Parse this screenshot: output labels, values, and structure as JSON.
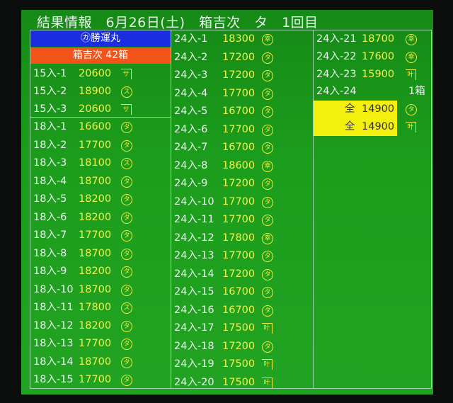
{
  "title": "結果情報　6月26日(土)　箱吉次　タ　1回目",
  "vessel": "㋕勝運丸",
  "summary": "箱吉次 42箱",
  "colors": {
    "board": "#1c9d1c",
    "price": "#f2f24a",
    "vessel_bg": "#1a2ee0",
    "summary_bg": "#f25318",
    "highlight": "#f4f00e"
  },
  "marks": {
    "ta": "タ",
    "su": "ス",
    "sa": "サ",
    "kou": "幸",
    "kanau": "叶"
  },
  "col1_top": [
    {
      "lot": "15入-1",
      "price": "20600",
      "mark": "sa"
    },
    {
      "lot": "15入-2",
      "price": "18900",
      "mark": "su"
    },
    {
      "lot": "15入-3",
      "price": "20600",
      "mark": "sa"
    }
  ],
  "col1": [
    {
      "lot": "18入-1",
      "price": "16600",
      "mark": "ta"
    },
    {
      "lot": "18入-2",
      "price": "17700",
      "mark": "ta"
    },
    {
      "lot": "18入-3",
      "price": "18100",
      "mark": "su"
    },
    {
      "lot": "18入-4",
      "price": "18700",
      "mark": "ta"
    },
    {
      "lot": "18入-5",
      "price": "18200",
      "mark": "ta"
    },
    {
      "lot": "18入-6",
      "price": "18200",
      "mark": "ta"
    },
    {
      "lot": "18入-7",
      "price": "17700",
      "mark": "ta"
    },
    {
      "lot": "18入-8",
      "price": "18700",
      "mark": "ta"
    },
    {
      "lot": "18入-9",
      "price": "18200",
      "mark": "ta"
    },
    {
      "lot": "18入-10",
      "price": "18700",
      "mark": "ta"
    },
    {
      "lot": "18入-11",
      "price": "17800",
      "mark": "su"
    },
    {
      "lot": "18入-12",
      "price": "18200",
      "mark": "ta"
    },
    {
      "lot": "18入-13",
      "price": "17700",
      "mark": "ta"
    },
    {
      "lot": "18入-14",
      "price": "18700",
      "mark": "ta"
    },
    {
      "lot": "18入-15",
      "price": "17700",
      "mark": "ta"
    }
  ],
  "col2": [
    {
      "lot": "24入-1",
      "price": "18300",
      "mark": "kou"
    },
    {
      "lot": "24入-2",
      "price": "17200",
      "mark": "ta"
    },
    {
      "lot": "24入-3",
      "price": "17200",
      "mark": "ta"
    },
    {
      "lot": "24入-4",
      "price": "17700",
      "mark": "ta"
    },
    {
      "lot": "24入-5",
      "price": "16700",
      "mark": "ta"
    },
    {
      "lot": "24入-6",
      "price": "17700",
      "mark": "ta"
    },
    {
      "lot": "24入-7",
      "price": "16700",
      "mark": "ta"
    },
    {
      "lot": "24入-8",
      "price": "18600",
      "mark": "kou"
    },
    {
      "lot": "24入-9",
      "price": "17200",
      "mark": "ta"
    },
    {
      "lot": "24入-10",
      "price": "17700",
      "mark": "ta"
    },
    {
      "lot": "24入-11",
      "price": "17700",
      "mark": "ta"
    },
    {
      "lot": "24入-12",
      "price": "17800",
      "mark": "kou"
    },
    {
      "lot": "24入-13",
      "price": "17700",
      "mark": "ta"
    },
    {
      "lot": "24入-14",
      "price": "17200",
      "mark": "ta"
    },
    {
      "lot": "24入-15",
      "price": "16700",
      "mark": "ta"
    },
    {
      "lot": "24入-16",
      "price": "16700",
      "mark": "ta"
    },
    {
      "lot": "24入-17",
      "price": "17500",
      "mark": "kanau"
    },
    {
      "lot": "24入-18",
      "price": "17200",
      "mark": "ta"
    },
    {
      "lot": "24入-19",
      "price": "17500",
      "mark": "kanau"
    },
    {
      "lot": "24入-20",
      "price": "17500",
      "mark": "kanau"
    }
  ],
  "col3": [
    {
      "lot": "24入-21",
      "price": "18700",
      "mark": "kou"
    },
    {
      "lot": "24入-22",
      "price": "17600",
      "mark": "kou"
    },
    {
      "lot": "24入-23",
      "price": "15900",
      "mark": "kanau"
    },
    {
      "lot": "24入-24",
      "boxes": "1箱"
    },
    {
      "lot": "全",
      "price": "14900",
      "mark": "ta",
      "highlight": true
    },
    {
      "lot": "全",
      "price": "14900",
      "mark": "kanau",
      "highlight": true
    }
  ]
}
